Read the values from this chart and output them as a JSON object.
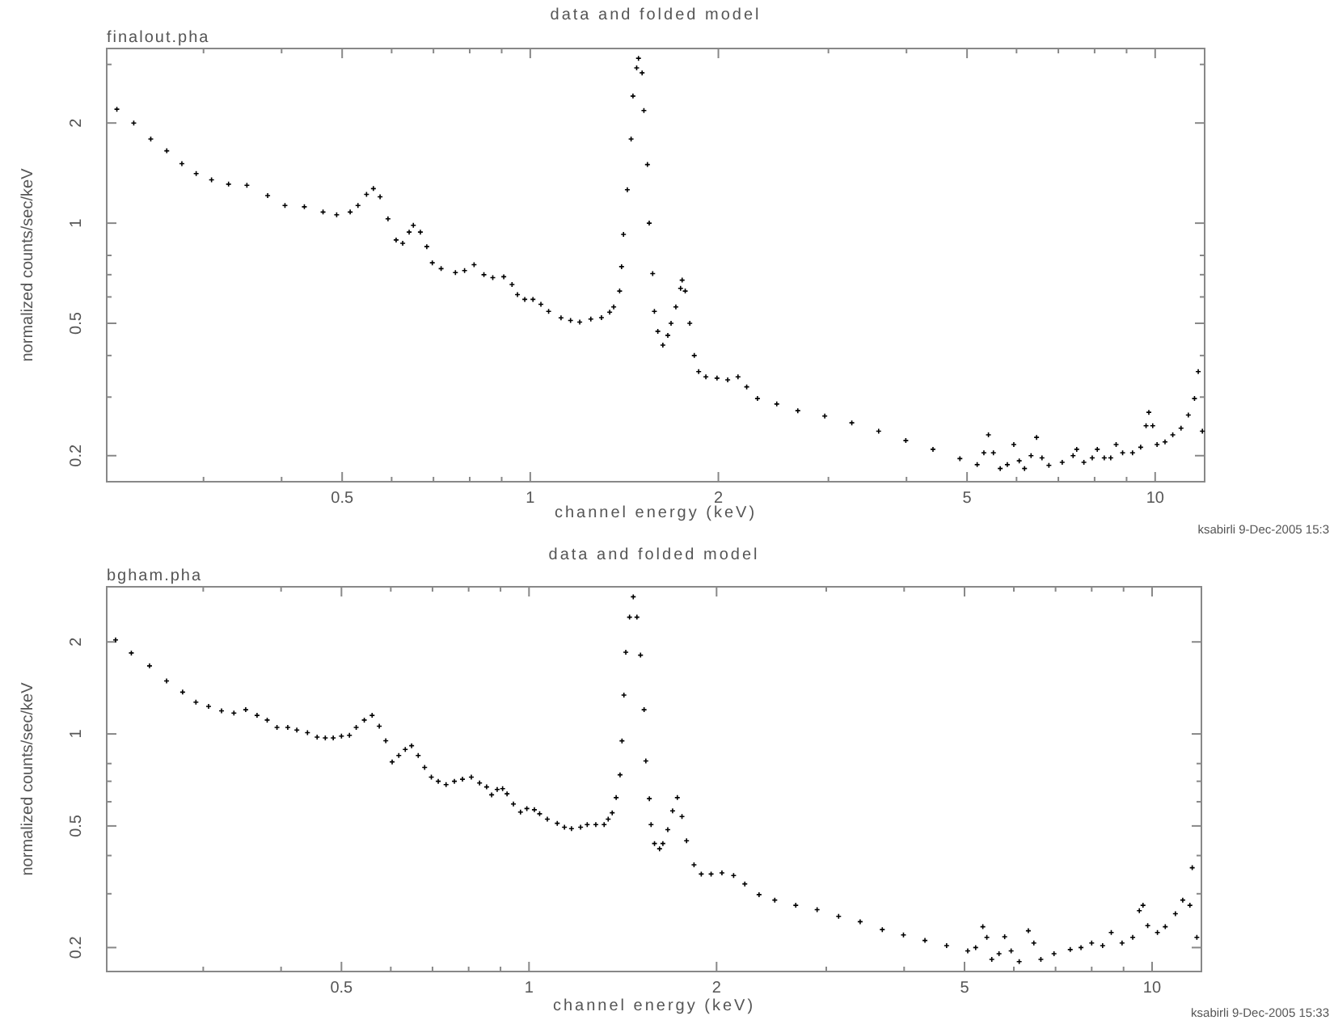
{
  "chart_data": [
    {
      "type": "scatter",
      "title": "data and folded model",
      "subtitle": "finalout.pha",
      "xlabel": "channel energy (keV)",
      "ylabel": "normalized counts/sec/keV",
      "annotations": [
        "ksabirli  9-Dec-2005 15:3"
      ],
      "color": "#000000",
      "marker": "cross",
      "log": "xy",
      "xlim": [
        0.21,
        12
      ],
      "ylim": [
        0.167,
        3.35
      ],
      "xticks": [
        {
          "value": 0.3,
          "label": null
        },
        {
          "value": 0.4,
          "label": null
        },
        0.5,
        {
          "value": 0.6,
          "label": null
        },
        {
          "value": 0.7,
          "label": null
        },
        {
          "value": 0.8,
          "label": null
        },
        {
          "value": 0.9,
          "label": null
        },
        1,
        2,
        {
          "value": 3,
          "label": null
        },
        {
          "value": 4,
          "label": null
        },
        5,
        {
          "value": 6,
          "label": null
        },
        {
          "value": 7,
          "label": null
        },
        {
          "value": 8,
          "label": null
        },
        {
          "value": 9,
          "label": null
        },
        10
      ],
      "yticks": [
        0.2,
        {
          "value": 0.3,
          "label": null
        },
        {
          "value": 0.4,
          "label": null
        },
        0.5,
        {
          "value": 0.6,
          "label": null
        },
        {
          "value": 0.7,
          "label": null
        },
        {
          "value": 0.8,
          "label": null
        },
        1,
        2,
        {
          "value": 3,
          "label": null
        }
      ],
      "x": [
        0.218,
        0.232,
        0.247,
        0.262,
        0.277,
        0.292,
        0.309,
        0.329,
        0.352,
        0.38,
        0.405,
        0.435,
        0.466,
        0.49,
        0.515,
        0.53,
        0.547,
        0.561,
        0.575,
        0.592,
        0.61,
        0.625,
        0.64,
        0.65,
        0.667,
        0.683,
        0.697,
        0.72,
        0.759,
        0.785,
        0.813,
        0.843,
        0.871,
        0.907,
        0.935,
        0.954,
        0.98,
        1.01,
        1.04,
        1.07,
        1.12,
        1.16,
        1.2,
        1.25,
        1.3,
        1.34,
        1.36,
        1.39,
        1.4,
        1.41,
        1.43,
        1.45,
        1.46,
        1.48,
        1.49,
        1.51,
        1.52,
        1.54,
        1.55,
        1.57,
        1.58,
        1.6,
        1.63,
        1.66,
        1.68,
        1.71,
        1.74,
        1.75,
        1.77,
        1.8,
        1.83,
        1.86,
        1.91,
        1.99,
        2.07,
        2.15,
        2.22,
        2.31,
        2.48,
        2.68,
        2.96,
        3.27,
        3.61,
        3.99,
        4.41,
        4.87,
        5.19,
        5.32,
        5.41,
        5.51,
        5.65,
        5.8,
        5.94,
        6.06,
        6.18,
        6.33,
        6.46,
        6.59,
        6.76,
        7.1,
        7.39,
        7.49,
        7.69,
        7.93,
        8.08,
        8.29,
        8.49,
        8.66,
        8.87,
        9.2,
        9.48,
        9.67,
        9.77,
        9.91,
        10.07,
        10.37,
        10.67,
        11.0,
        11.3,
        11.56,
        11.72,
        11.9
      ],
      "values": [
        2.2,
        2.0,
        1.79,
        1.65,
        1.51,
        1.41,
        1.35,
        1.31,
        1.3,
        1.21,
        1.13,
        1.12,
        1.08,
        1.06,
        1.08,
        1.13,
        1.22,
        1.27,
        1.2,
        1.03,
        0.89,
        0.87,
        0.94,
        0.985,
        0.94,
        0.85,
        0.76,
        0.73,
        0.71,
        0.72,
        0.75,
        0.7,
        0.686,
        0.69,
        0.654,
        0.61,
        0.59,
        0.59,
        0.57,
        0.543,
        0.519,
        0.51,
        0.504,
        0.515,
        0.52,
        0.54,
        0.56,
        0.625,
        0.74,
        0.925,
        1.26,
        1.79,
        2.41,
        2.93,
        3.13,
        2.83,
        2.18,
        1.5,
        1.0,
        0.705,
        0.543,
        0.473,
        0.43,
        0.46,
        0.5,
        0.56,
        0.637,
        0.674,
        0.625,
        0.5,
        0.4,
        0.358,
        0.345,
        0.342,
        0.338,
        0.345,
        0.322,
        0.297,
        0.286,
        0.273,
        0.263,
        0.251,
        0.237,
        0.222,
        0.209,
        0.196,
        0.188,
        0.204,
        0.231,
        0.204,
        0.183,
        0.188,
        0.216,
        0.193,
        0.183,
        0.2,
        0.227,
        0.197,
        0.187,
        0.191,
        0.2,
        0.209,
        0.191,
        0.197,
        0.209,
        0.197,
        0.197,
        0.216,
        0.204,
        0.204,
        0.212,
        0.246,
        0.27,
        0.246,
        0.216,
        0.22,
        0.231,
        0.242,
        0.265,
        0.297,
        0.358,
        0.237
      ]
    },
    {
      "type": "scatter",
      "title": "data and folded model",
      "subtitle": "bgham.pha",
      "xlabel": "channel energy (keV)",
      "ylabel": "normalized counts/sec/keV",
      "annotations": [
        "ksabirli  9-Dec-2005 15:33"
      ],
      "color": "#000000",
      "marker": "cross",
      "log": "xy",
      "xlim": [
        0.21,
        12
      ],
      "ylim": [
        0.167,
        3.03
      ],
      "xticks": [
        {
          "value": 0.3,
          "label": null
        },
        {
          "value": 0.4,
          "label": null
        },
        0.5,
        {
          "value": 0.6,
          "label": null
        },
        {
          "value": 0.7,
          "label": null
        },
        {
          "value": 0.8,
          "label": null
        },
        {
          "value": 0.9,
          "label": null
        },
        1,
        2,
        {
          "value": 3,
          "label": null
        },
        {
          "value": 4,
          "label": null
        },
        5,
        {
          "value": 6,
          "label": null
        },
        {
          "value": 7,
          "label": null
        },
        {
          "value": 8,
          "label": null
        },
        {
          "value": 9,
          "label": null
        },
        10
      ],
      "yticks": [
        0.2,
        {
          "value": 0.3,
          "label": null
        },
        {
          "value": 0.4,
          "label": null
        },
        0.5,
        {
          "value": 0.6,
          "label": null
        },
        {
          "value": 0.7,
          "label": null
        },
        {
          "value": 0.8,
          "label": null
        },
        1,
        2
      ],
      "x": [
        0.217,
        0.23,
        0.246,
        0.262,
        0.278,
        0.292,
        0.306,
        0.321,
        0.336,
        0.351,
        0.366,
        0.38,
        0.394,
        0.41,
        0.424,
        0.441,
        0.457,
        0.471,
        0.485,
        0.5,
        0.515,
        0.528,
        0.544,
        0.56,
        0.575,
        0.589,
        0.603,
        0.618,
        0.633,
        0.648,
        0.664,
        0.68,
        0.697,
        0.715,
        0.736,
        0.759,
        0.782,
        0.808,
        0.833,
        0.855,
        0.871,
        0.889,
        0.907,
        0.922,
        0.944,
        0.969,
        0.992,
        1.02,
        1.04,
        1.07,
        1.11,
        1.14,
        1.17,
        1.21,
        1.24,
        1.28,
        1.32,
        1.34,
        1.36,
        1.38,
        1.4,
        1.41,
        1.42,
        1.43,
        1.45,
        1.47,
        1.49,
        1.51,
        1.53,
        1.54,
        1.56,
        1.57,
        1.59,
        1.62,
        1.64,
        1.67,
        1.7,
        1.73,
        1.76,
        1.79,
        1.84,
        1.89,
        1.96,
        2.04,
        2.13,
        2.22,
        2.34,
        2.48,
        2.68,
        2.9,
        3.14,
        3.4,
        3.69,
        3.99,
        4.32,
        4.68,
        5.06,
        5.21,
        5.35,
        5.43,
        5.53,
        5.68,
        5.8,
        5.94,
        6.12,
        6.33,
        6.46,
        6.63,
        6.96,
        7.39,
        7.69,
        8.0,
        8.33,
        8.6,
        8.95,
        9.31,
        9.54,
        9.67,
        9.84,
        10.2,
        10.5,
        10.9,
        11.2,
        11.5,
        11.6,
        11.8
      ],
      "values": [
        2.03,
        1.84,
        1.67,
        1.49,
        1.37,
        1.27,
        1.23,
        1.19,
        1.17,
        1.2,
        1.15,
        1.11,
        1.05,
        1.05,
        1.03,
        1.01,
        0.976,
        0.97,
        0.97,
        0.984,
        0.99,
        1.05,
        1.11,
        1.15,
        1.06,
        0.95,
        0.81,
        0.85,
        0.89,
        0.915,
        0.85,
        0.777,
        0.722,
        0.7,
        0.683,
        0.7,
        0.711,
        0.722,
        0.691,
        0.671,
        0.632,
        0.658,
        0.662,
        0.637,
        0.59,
        0.555,
        0.57,
        0.565,
        0.548,
        0.526,
        0.51,
        0.495,
        0.49,
        0.495,
        0.505,
        0.505,
        0.505,
        0.526,
        0.552,
        0.619,
        0.735,
        0.949,
        1.34,
        1.85,
        2.41,
        2.81,
        2.41,
        1.81,
        1.2,
        0.816,
        0.614,
        0.505,
        0.438,
        0.421,
        0.438,
        0.486,
        0.56,
        0.619,
        0.537,
        0.447,
        0.373,
        0.348,
        0.348,
        0.351,
        0.344,
        0.323,
        0.298,
        0.286,
        0.275,
        0.266,
        0.253,
        0.243,
        0.229,
        0.22,
        0.211,
        0.203,
        0.195,
        0.2,
        0.234,
        0.216,
        0.183,
        0.191,
        0.217,
        0.195,
        0.18,
        0.227,
        0.207,
        0.183,
        0.191,
        0.197,
        0.2,
        0.207,
        0.203,
        0.224,
        0.207,
        0.216,
        0.264,
        0.275,
        0.236,
        0.224,
        0.234,
        0.258,
        0.286,
        0.275,
        0.365,
        0.216
      ]
    }
  ]
}
